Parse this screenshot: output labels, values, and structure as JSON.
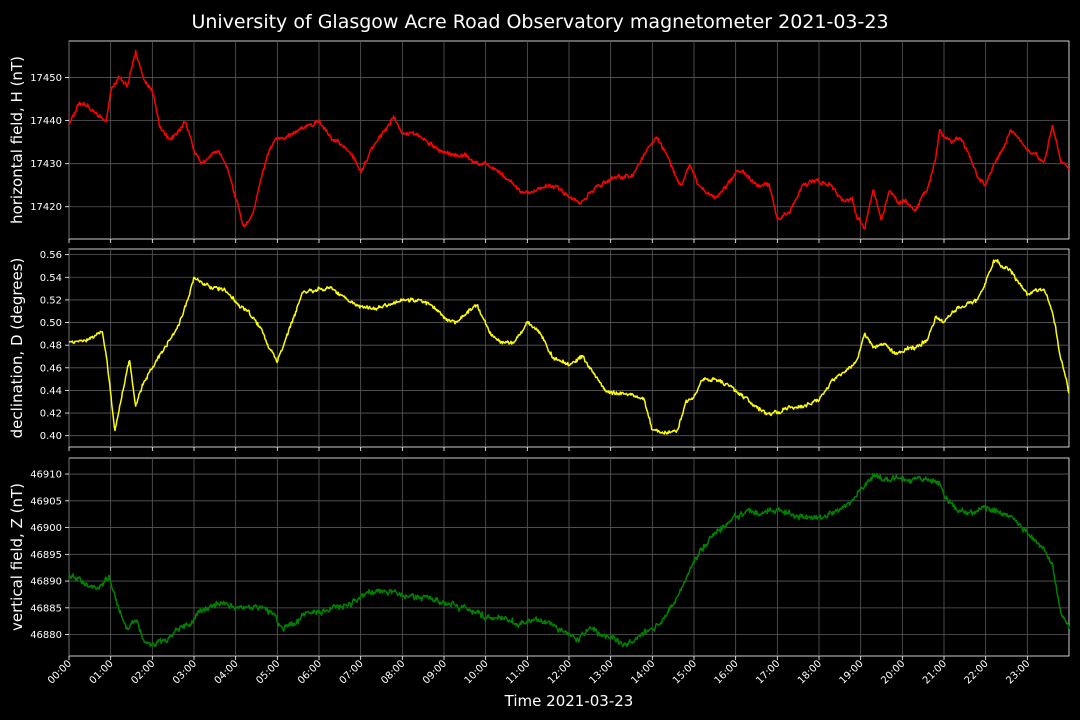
{
  "chart_data": {
    "type": "line",
    "title": "University of Glasgow Acre Road Observatory magnetometer 2021-03-23",
    "xlabel": "Time 2021-03-23",
    "x_ticks": [
      "00:00",
      "01:00",
      "02:00",
      "03:00",
      "04:00",
      "05:00",
      "06:00",
      "07:00",
      "08:00",
      "09:00",
      "10:00",
      "11:00",
      "12:00",
      "13:00",
      "14:00",
      "15:00",
      "16:00",
      "17:00",
      "18:00",
      "19:00",
      "20:00",
      "21:00",
      "22:00",
      "23:00"
    ],
    "xlim_hours": [
      0,
      24
    ],
    "grid": true,
    "panels": [
      {
        "ylabel": "horizontal field, H (nT)",
        "color": "#ff0000",
        "ylim": [
          17412.5,
          17458.5
        ],
        "yticks": [
          17420,
          17430,
          17440,
          17450
        ],
        "tick_labels": [
          "17420",
          "17430",
          "17440",
          "17450"
        ],
        "noise": 0.7,
        "series": {
          "hours": [
            0,
            0.25,
            0.5,
            0.75,
            0.9,
            1.0,
            1.2,
            1.4,
            1.6,
            1.8,
            2.0,
            2.2,
            2.4,
            2.6,
            2.8,
            3.0,
            3.2,
            3.4,
            3.6,
            3.8,
            4.0,
            4.2,
            4.4,
            4.6,
            4.8,
            5.0,
            5.2,
            5.5,
            5.8,
            6.0,
            6.3,
            6.6,
            6.8,
            7.0,
            7.3,
            7.6,
            7.8,
            8.0,
            8.3,
            8.6,
            8.9,
            9.2,
            9.5,
            9.8,
            10.0,
            10.3,
            10.6,
            10.9,
            11.2,
            11.5,
            11.8,
            12.0,
            12.3,
            12.6,
            12.9,
            13.2,
            13.5,
            13.7,
            13.9,
            14.1,
            14.3,
            14.5,
            14.7,
            14.9,
            15.1,
            15.3,
            15.5,
            15.8,
            16.0,
            16.2,
            16.5,
            16.8,
            17.0,
            17.3,
            17.6,
            17.8,
            18.0,
            18.3,
            18.6,
            18.8,
            18.9,
            19.1,
            19.3,
            19.5,
            19.7,
            19.9,
            20.1,
            20.3,
            20.5,
            20.6,
            20.8,
            20.9,
            21.0,
            21.2,
            21.4,
            21.6,
            21.8,
            22.0,
            22.2,
            22.4,
            22.6,
            22.8,
            23.0,
            23.2,
            23.4,
            23.6,
            23.8,
            24.0
          ],
          "values": [
            17439,
            17444,
            17443,
            17441,
            17440,
            17447,
            17450,
            17448,
            17456,
            17449,
            17447,
            17438,
            17436,
            17437,
            17440,
            17433,
            17430,
            17432,
            17433,
            17429,
            17422,
            17415,
            17418,
            17426,
            17433,
            17436,
            17436,
            17438,
            17439,
            17440,
            17436,
            17434,
            17432,
            17428,
            17434,
            17438,
            17441,
            17437,
            17437,
            17435,
            17433,
            17432,
            17432,
            17430,
            17430,
            17428,
            17426,
            17423,
            17424,
            17425,
            17424,
            17422,
            17421,
            17424,
            17426,
            17427,
            17427,
            17430,
            17434,
            17436,
            17433,
            17428,
            17425,
            17430,
            17425,
            17423,
            17422,
            17425,
            17428,
            17428,
            17425,
            17425,
            17417,
            17419,
            17425,
            17426,
            17426,
            17425,
            17421,
            17422,
            17418,
            17415,
            17424,
            17417,
            17424,
            17421,
            17421,
            17419,
            17423,
            17424,
            17431,
            17438,
            17436,
            17435,
            17436,
            17432,
            17427,
            17425,
            17430,
            17433,
            17438,
            17436,
            17433,
            17432,
            17430,
            17439,
            17431,
            17429
          ]
        }
      },
      {
        "ylabel": "declination, D (degrees)",
        "color": "#ffff00",
        "ylim": [
          0.39,
          0.565
        ],
        "yticks": [
          0.4,
          0.42,
          0.44,
          0.46,
          0.48,
          0.5,
          0.52,
          0.54,
          0.56
        ],
        "tick_labels": [
          "0.40",
          "0.42",
          "0.44",
          "0.46",
          "0.48",
          "0.50",
          "0.52",
          "0.54",
          "0.56"
        ],
        "noise": 0.0025,
        "series": {
          "hours": [
            0,
            0.3,
            0.6,
            0.8,
            0.9,
            1.1,
            1.3,
            1.45,
            1.6,
            1.8,
            2.0,
            2.3,
            2.6,
            2.9,
            3.0,
            3.2,
            3.4,
            3.7,
            4.0,
            4.3,
            4.6,
            4.8,
            5.0,
            5.3,
            5.6,
            5.8,
            6.0,
            6.3,
            6.6,
            6.9,
            7.2,
            7.6,
            8.0,
            8.4,
            8.7,
            9.0,
            9.3,
            9.6,
            9.8,
            10.1,
            10.4,
            10.7,
            11.0,
            11.3,
            11.6,
            12.0,
            12.3,
            12.6,
            12.9,
            13.2,
            13.5,
            13.8,
            14.0,
            14.3,
            14.6,
            14.8,
            15.0,
            15.2,
            15.5,
            15.8,
            16.1,
            16.4,
            16.7,
            17.0,
            17.3,
            17.6,
            18.0,
            18.3,
            18.6,
            18.9,
            19.1,
            19.3,
            19.6,
            19.8,
            20.0,
            20.3,
            20.6,
            20.8,
            21.0,
            21.2,
            21.5,
            21.8,
            22.0,
            22.2,
            22.4,
            22.6,
            22.8,
            23.0,
            23.2,
            23.4,
            23.6,
            23.8,
            24.0
          ],
          "values": [
            0.482,
            0.484,
            0.487,
            0.492,
            0.47,
            0.405,
            0.44,
            0.468,
            0.428,
            0.448,
            0.46,
            0.478,
            0.495,
            0.525,
            0.54,
            0.535,
            0.53,
            0.53,
            0.518,
            0.51,
            0.495,
            0.478,
            0.465,
            0.495,
            0.525,
            0.528,
            0.53,
            0.53,
            0.522,
            0.515,
            0.512,
            0.515,
            0.52,
            0.52,
            0.515,
            0.505,
            0.5,
            0.51,
            0.515,
            0.49,
            0.482,
            0.482,
            0.5,
            0.492,
            0.47,
            0.462,
            0.47,
            0.455,
            0.438,
            0.437,
            0.437,
            0.432,
            0.405,
            0.402,
            0.405,
            0.43,
            0.435,
            0.45,
            0.45,
            0.445,
            0.437,
            0.428,
            0.42,
            0.42,
            0.425,
            0.425,
            0.432,
            0.448,
            0.455,
            0.465,
            0.49,
            0.478,
            0.482,
            0.472,
            0.475,
            0.478,
            0.485,
            0.505,
            0.5,
            0.51,
            0.515,
            0.52,
            0.535,
            0.555,
            0.55,
            0.545,
            0.535,
            0.525,
            0.528,
            0.53,
            0.51,
            0.47,
            0.438
          ]
        }
      },
      {
        "ylabel": "vertical field, Z (nT)",
        "color": "#008000",
        "ylim": [
          46876,
          46913
        ],
        "yticks": [
          46880,
          46885,
          46890,
          46895,
          46900,
          46905,
          46910
        ],
        "tick_labels": [
          "46880",
          "46885",
          "46890",
          "46895",
          "46900",
          "46905",
          "46910"
        ],
        "noise": 0.8,
        "series": {
          "hours": [
            0,
            0.3,
            0.6,
            0.8,
            0.95,
            1.05,
            1.2,
            1.4,
            1.6,
            1.8,
            2.0,
            2.3,
            2.6,
            2.9,
            3.1,
            3.4,
            3.7,
            4.0,
            4.3,
            4.6,
            4.9,
            5.1,
            5.4,
            5.7,
            6.0,
            6.4,
            6.8,
            7.2,
            7.5,
            7.8,
            8.2,
            8.6,
            9.0,
            9.4,
            9.8,
            10.1,
            10.4,
            10.8,
            11.2,
            11.6,
            12.0,
            12.2,
            12.5,
            12.8,
            13.1,
            13.4,
            13.7,
            14.0,
            14.3,
            14.6,
            14.9,
            15.1,
            15.4,
            15.7,
            16.0,
            16.3,
            16.6,
            16.9,
            17.2,
            17.5,
            17.8,
            18.1,
            18.4,
            18.7,
            18.9,
            19.1,
            19.3,
            19.5,
            19.7,
            20.0,
            20.3,
            20.6,
            20.9,
            21.1,
            21.4,
            21.7,
            22.0,
            22.3,
            22.6,
            22.9,
            23.1,
            23.4,
            23.6,
            23.8,
            24.0
          ],
          "values": [
            46891,
            46890,
            46889,
            46889,
            46891,
            46888,
            46885,
            46881,
            46883,
            46879,
            46878,
            46879,
            46881,
            46882,
            46884,
            46885,
            46886,
            46885,
            46885,
            46885,
            46884,
            46881,
            46882,
            46884,
            46884,
            46885,
            46886,
            46888,
            46888,
            46888,
            46887,
            46887,
            46886,
            46885,
            46884,
            46883,
            46883,
            46882,
            46883,
            46882,
            46880,
            46879,
            46881,
            46880,
            46879,
            46878,
            46880,
            46881,
            46883,
            46887,
            46892,
            46895,
            46898,
            46900,
            46902,
            46903,
            46903,
            46903,
            46903,
            46902,
            46902,
            46902,
            46903,
            46904,
            46906,
            46908,
            46910,
            46909,
            46909,
            46909,
            46909,
            46909,
            46908,
            46905,
            46903,
            46903,
            46904,
            46903,
            46902,
            46900,
            46898,
            46896,
            46893,
            46884,
            46881
          ]
        }
      }
    ]
  }
}
